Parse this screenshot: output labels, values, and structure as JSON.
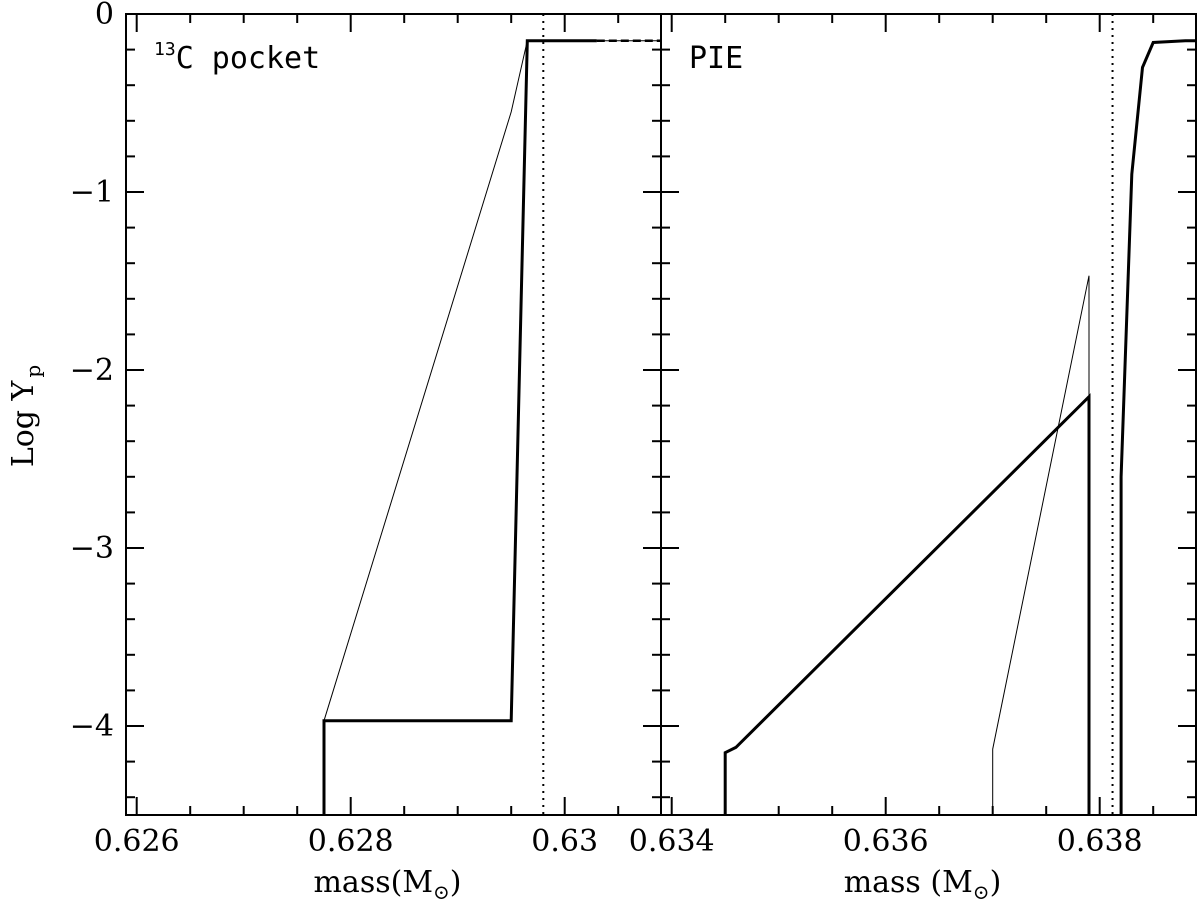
{
  "chart_data": [
    {
      "type": "line",
      "panel_label": "C pocket",
      "panel_label_superscript": "13",
      "xlabel": "mass(M",
      "xlabel_suffix": ")",
      "ylabel": "Log Y",
      "ylabel_subscript": "p",
      "xlim": [
        0.6259,
        0.6309
      ],
      "ylim": [
        -4.5,
        0
      ],
      "xticks": [
        0.626,
        0.628,
        0.63
      ],
      "xtick_labels": [
        "0.626",
        "0.628",
        "0.63"
      ],
      "yticks": [
        0,
        -1,
        -2,
        -3,
        -4
      ],
      "ytick_labels": [
        "0",
        "−1",
        "−2",
        "−3",
        "−4"
      ],
      "vline": 0.6298,
      "series": [
        {
          "style": "thin",
          "x": [
            0.62775,
            0.6295,
            0.62965,
            0.6309
          ],
          "y": [
            -3.97,
            -0.55,
            -0.15,
            -0.15
          ]
        },
        {
          "style": "thick",
          "x": [
            0.62775,
            0.62775,
            0.6295,
            0.62965,
            0.6303
          ],
          "y": [
            -4.5,
            -3.97,
            -3.97,
            -0.15,
            -0.15
          ]
        },
        {
          "style": "dashed",
          "x": [
            0.62775,
            0.6295
          ],
          "y": [
            -3.97,
            -3.97
          ]
        },
        {
          "style": "dashed",
          "x": [
            0.6303,
            0.6309
          ],
          "y": [
            -0.15,
            -0.15
          ]
        }
      ]
    },
    {
      "type": "line",
      "panel_label": "PIE",
      "xlabel": "mass (M",
      "xlabel_suffix": ")",
      "xlim": [
        0.6339,
        0.6389
      ],
      "ylim": [
        -4.5,
        0
      ],
      "xticks": [
        0.634,
        0.636,
        0.638
      ],
      "xtick_labels": [
        "0.634",
        "0.636",
        "0.638"
      ],
      "yticks": [
        0,
        -1,
        -2,
        -3,
        -4
      ],
      "vline": 0.63812,
      "series": [
        {
          "style": "thin",
          "x": [
            0.637,
            0.637,
            0.6379,
            0.6379
          ],
          "y": [
            -4.5,
            -4.13,
            -1.47,
            -4.5
          ]
        },
        {
          "style": "thick",
          "x": [
            0.6345,
            0.6345,
            0.6346,
            0.6379,
            0.6379
          ],
          "y": [
            -4.5,
            -4.15,
            -4.12,
            -2.15,
            -4.5
          ]
        },
        {
          "style": "thick",
          "x": [
            0.6382,
            0.6382,
            0.6383,
            0.6384,
            0.6385,
            0.6388,
            0.6389
          ],
          "y": [
            -4.5,
            -2.6,
            -0.9,
            -0.3,
            -0.16,
            -0.15,
            -0.15
          ]
        }
      ]
    }
  ]
}
